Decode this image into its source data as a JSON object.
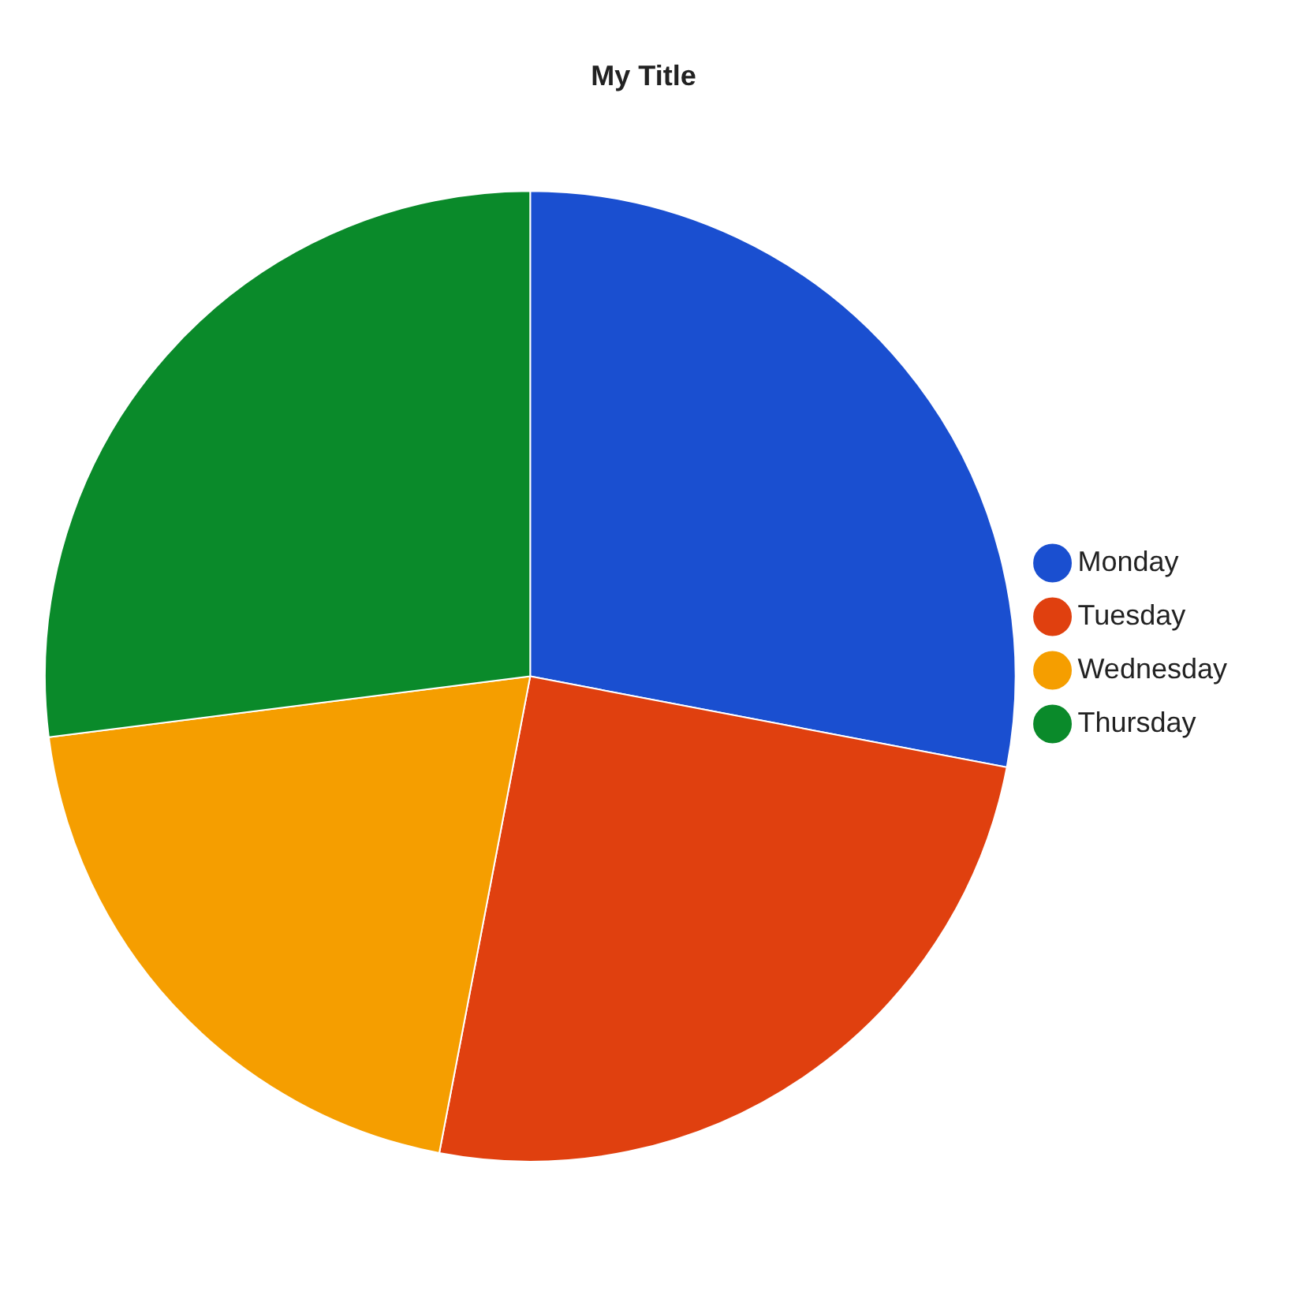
{
  "chart_data": {
    "type": "pie",
    "title": "My Title",
    "categories": [
      "Monday",
      "Tuesday",
      "Wednesday",
      "Thursday"
    ],
    "values": [
      28,
      25,
      20,
      27
    ],
    "colors": [
      "#1a4fd0",
      "#e0400f",
      "#f59e00",
      "#0a8a2a"
    ],
    "legend": "right"
  }
}
